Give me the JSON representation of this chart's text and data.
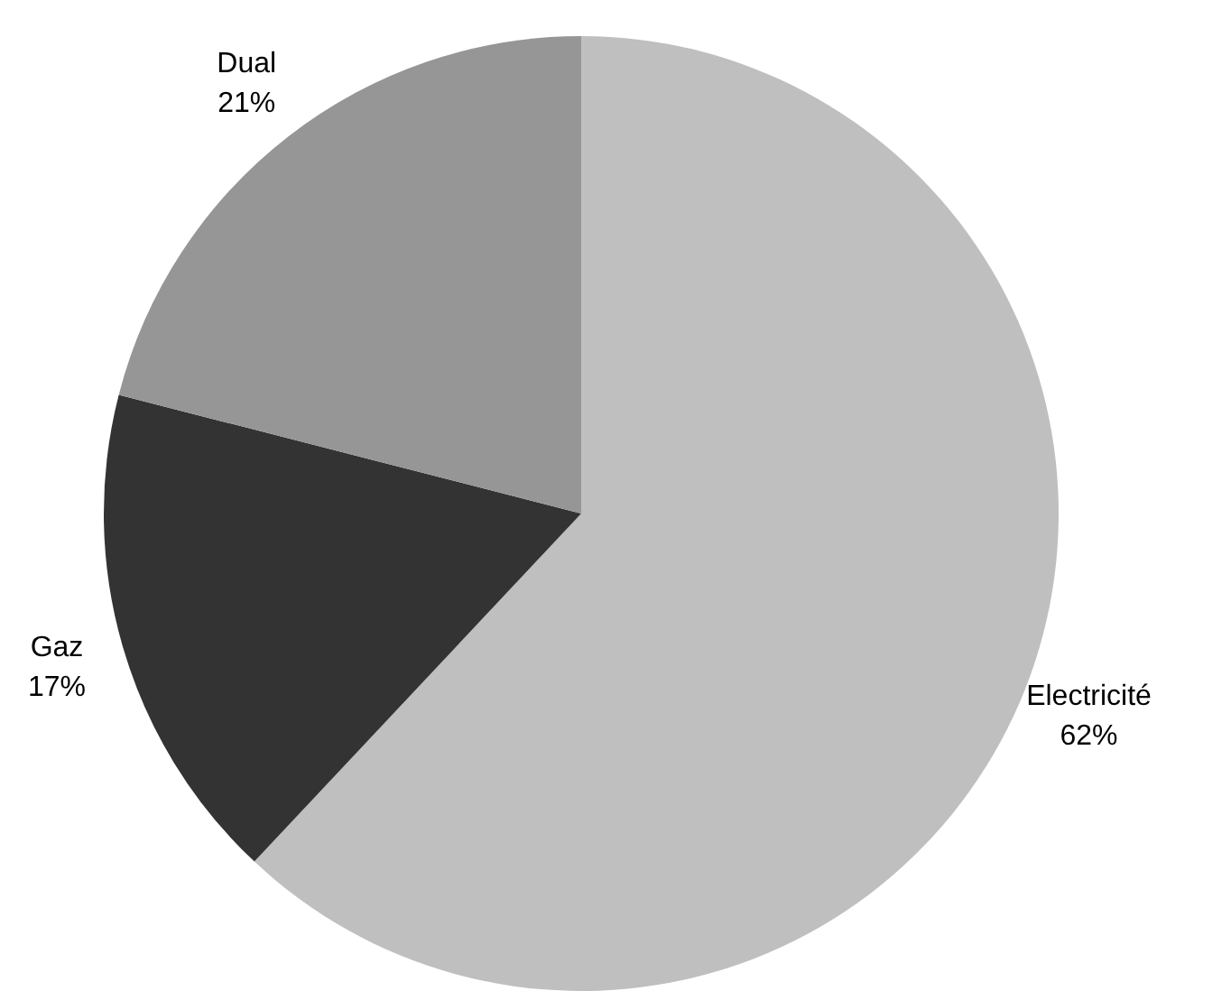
{
  "chart_data": {
    "type": "pie",
    "categories": [
      "Electricité",
      "Gaz",
      "Dual"
    ],
    "values": [
      62,
      17,
      21
    ],
    "colors": [
      "#bfbfbf",
      "#333333",
      "#969696"
    ],
    "value_labels": [
      "62%",
      "17%",
      "21%"
    ],
    "legend": false
  }
}
